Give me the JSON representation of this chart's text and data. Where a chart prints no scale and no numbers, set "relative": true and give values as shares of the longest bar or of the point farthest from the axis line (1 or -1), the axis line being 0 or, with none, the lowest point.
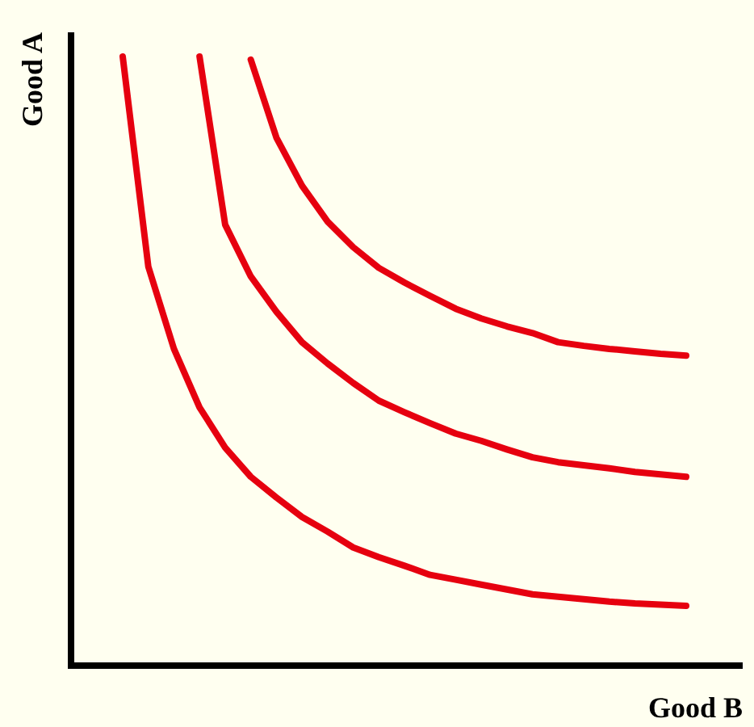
{
  "chart_data": {
    "type": "line",
    "relative": true,
    "xlabel": "Good B",
    "ylabel": "Good A",
    "marker": "none",
    "line_style": "solid",
    "categories": [
      null,
      null,
      null,
      null,
      null,
      null,
      null,
      null,
      null,
      null,
      null,
      null,
      null,
      null,
      null,
      null,
      null,
      null,
      null,
      null,
      null,
      null,
      null
    ],
    "series": [
      {
        "color": "#e6000f",
        "values": [
          1,
          0.655,
          0.52,
          0.424,
          0.358,
          0.31,
          0.276,
          0.244,
          0.22,
          0.194,
          0.178,
          0.164,
          0.149,
          0.141,
          0.133,
          0.125,
          0.117,
          0.113,
          0.109,
          0.105,
          0.102,
          0.1,
          0.098
        ]
      },
      {
        "color": "#e6000f",
        "values": [
          null,
          null,
          null,
          1,
          0.724,
          0.639,
          0.581,
          0.531,
          0.496,
          0.464,
          0.435,
          0.416,
          0.398,
          0.381,
          0.369,
          0.355,
          0.342,
          0.334,
          0.329,
          0.324,
          0.318,
          0.314,
          0.31
        ]
      },
      {
        "color": "#e6000f",
        "values": [
          null,
          null,
          null,
          null,
          null,
          0.995,
          0.867,
          0.788,
          0.729,
          0.687,
          0.653,
          0.629,
          0.607,
          0.586,
          0.57,
          0.557,
          0.546,
          0.531,
          0.525,
          0.52,
          0.516,
          0.512,
          0.509
        ]
      }
    ]
  }
}
